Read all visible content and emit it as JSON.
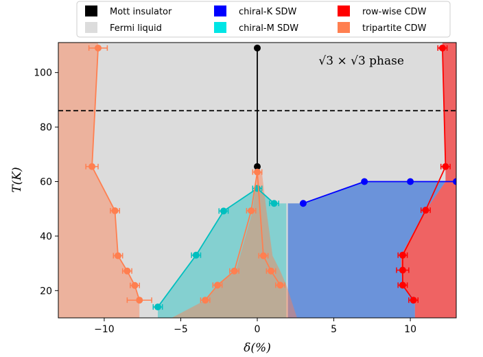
{
  "chart_data": {
    "type": "scatter",
    "xlabel": "δ(%)",
    "ylabel": "T(K)",
    "xlim": [
      -13,
      13
    ],
    "ylim": [
      10,
      111
    ],
    "xticks": [
      -10,
      -5,
      0,
      5,
      10
    ],
    "yticks": [
      20,
      40,
      60,
      80,
      100
    ],
    "grid": false,
    "legend_position": "top-center",
    "annotation": "√3 × √3 phase",
    "annotation_at": {
      "x": 6.8,
      "y": 103
    },
    "hline": {
      "y": 86,
      "style": "dashed",
      "color": "#000000"
    },
    "legend": [
      {
        "label": "Mott insulator",
        "color": "#000000"
      },
      {
        "label": "Fermi liquid",
        "color": "#dcdcdc"
      },
      {
        "label": "chiral-K SDW",
        "color": "#0000ff"
      },
      {
        "label": "chiral-M SDW",
        "color": "#00e5e5"
      },
      {
        "label": "row-wise CDW",
        "color": "#ff0000"
      },
      {
        "label": "tripartite CDW",
        "color": "#ff7f50"
      }
    ],
    "regions": [
      {
        "phase": "Fermi liquid",
        "color": "#dcdcdc",
        "opacity": 1.0,
        "polygon": [
          [
            -13,
            10
          ],
          [
            13,
            10
          ],
          [
            13,
            111
          ],
          [
            -13,
            111
          ]
        ]
      },
      {
        "phase": "chiral-K SDW",
        "color": "#3a73d9",
        "opacity": 0.7,
        "polygon": [
          [
            2,
            10
          ],
          [
            10.3,
            10
          ],
          [
            10.3,
            16.5
          ],
          [
            9.5,
            22
          ],
          [
            9.4,
            28
          ],
          [
            9.4,
            33
          ],
          [
            11,
            49.5
          ],
          [
            12.3,
            60
          ],
          [
            13,
            60
          ],
          [
            7,
            60
          ],
          [
            3,
            52
          ],
          [
            2,
            52
          ]
        ]
      },
      {
        "phase": "chiral-M SDW",
        "color": "#00bfbf",
        "opacity": 0.4,
        "polygon": [
          [
            -6.5,
            10
          ],
          [
            -6.5,
            14
          ],
          [
            -4,
            33
          ],
          [
            -2.2,
            49.2
          ],
          [
            0,
            57.5
          ],
          [
            1.1,
            52
          ],
          [
            1.9,
            52
          ],
          [
            1.9,
            10
          ]
        ]
      },
      {
        "phase": "tripartite CDW left",
        "color": "#ff7f50",
        "opacity": 0.45,
        "polygon": [
          [
            -13,
            10
          ],
          [
            -13,
            111
          ],
          [
            -10.4,
            111
          ],
          [
            -10.4,
            109
          ],
          [
            -10.8,
            65.5
          ],
          [
            -9.3,
            49.3
          ],
          [
            -9.1,
            32.8
          ],
          [
            -8.5,
            27.2
          ],
          [
            -8,
            21.9
          ],
          [
            -7.7,
            16.5
          ],
          [
            -7.7,
            10
          ]
        ]
      },
      {
        "phase": "tripartite CDW center",
        "color": "#ff7f50",
        "opacity": 0.45,
        "polygon": [
          [
            -5.6,
            10
          ],
          [
            -3.4,
            16.5
          ],
          [
            -2.6,
            22
          ],
          [
            -1.4,
            27.2
          ],
          [
            -0.3,
            49.3
          ],
          [
            0,
            63.5
          ],
          [
            0.3,
            63.5
          ],
          [
            0.6,
            49.3
          ],
          [
            1,
            32.8
          ],
          [
            1.5,
            27.2
          ],
          [
            1.9,
            22
          ],
          [
            2.6,
            10
          ]
        ]
      },
      {
        "phase": "row-wise CDW",
        "color": "#ff0000",
        "opacity": 0.55,
        "polygon": [
          [
            10.3,
            10
          ],
          [
            10.3,
            16.5
          ],
          [
            9.5,
            22
          ],
          [
            9.4,
            28
          ],
          [
            9.4,
            33
          ],
          [
            11,
            49.5
          ],
          [
            12.3,
            60
          ],
          [
            12.3,
            65.5
          ],
          [
            12.1,
            109
          ],
          [
            12.1,
            111
          ],
          [
            13,
            111
          ],
          [
            13,
            10
          ]
        ]
      }
    ],
    "series": [
      {
        "name": "Mott insulator",
        "color": "#000000",
        "points": [
          [
            0,
            65.5
          ],
          [
            0,
            109
          ]
        ],
        "xerr": [
          0,
          0
        ]
      },
      {
        "name": "chiral-K SDW",
        "color": "#0000ff",
        "points": [
          [
            3,
            52
          ],
          [
            7,
            60
          ],
          [
            10,
            60
          ],
          [
            13,
            60
          ]
        ],
        "xerr": [
          0,
          0,
          0,
          0
        ]
      },
      {
        "name": "chiral-M SDW",
        "color": "#00bfbf",
        "points": [
          [
            -6.5,
            14
          ],
          [
            -4,
            33
          ],
          [
            -2.2,
            49.2
          ],
          [
            0,
            57.5
          ],
          [
            1.1,
            52
          ]
        ],
        "xerr": [
          0.3,
          0.3,
          0.3,
          0.3,
          0.3
        ]
      },
      {
        "name": "tripartite CDW",
        "color": "#ff7f50",
        "points": [
          [
            -10.4,
            109
          ],
          [
            -10.8,
            65.5
          ],
          [
            -9.3,
            49.3
          ],
          [
            -9.1,
            32.8
          ],
          [
            -8.5,
            27.2
          ],
          [
            -8,
            21.9
          ],
          [
            -7.7,
            16.5
          ]
        ],
        "xerr": [
          0.6,
          0.4,
          0.3,
          0.3,
          0.3,
          0.3,
          0.8
        ]
      },
      {
        "name": "tripartite CDW",
        "color": "#ff7f50",
        "points": [
          [
            -3.4,
            16.5
          ],
          [
            -2.6,
            22
          ],
          [
            -1.5,
            27.2
          ],
          [
            -0.4,
            49.3
          ],
          [
            0,
            63.5
          ],
          [
            0.4,
            32.8
          ],
          [
            0.9,
            27.2
          ],
          [
            1.5,
            22
          ]
        ],
        "xerr": [
          0.3,
          0.3,
          0.3,
          0.3,
          0.3,
          0.3,
          0.3,
          0.3
        ]
      },
      {
        "name": "row-wise CDW",
        "color": "#ff0000",
        "points": [
          [
            10.2,
            16.5
          ],
          [
            9.5,
            22
          ],
          [
            9.5,
            27.5
          ],
          [
            9.5,
            33
          ],
          [
            11,
            49.5
          ],
          [
            12.3,
            65.5
          ],
          [
            12.1,
            109
          ]
        ],
        "xerr": [
          0.3,
          0.3,
          0.4,
          0.3,
          0.3,
          0.3,
          0.3
        ]
      }
    ]
  }
}
